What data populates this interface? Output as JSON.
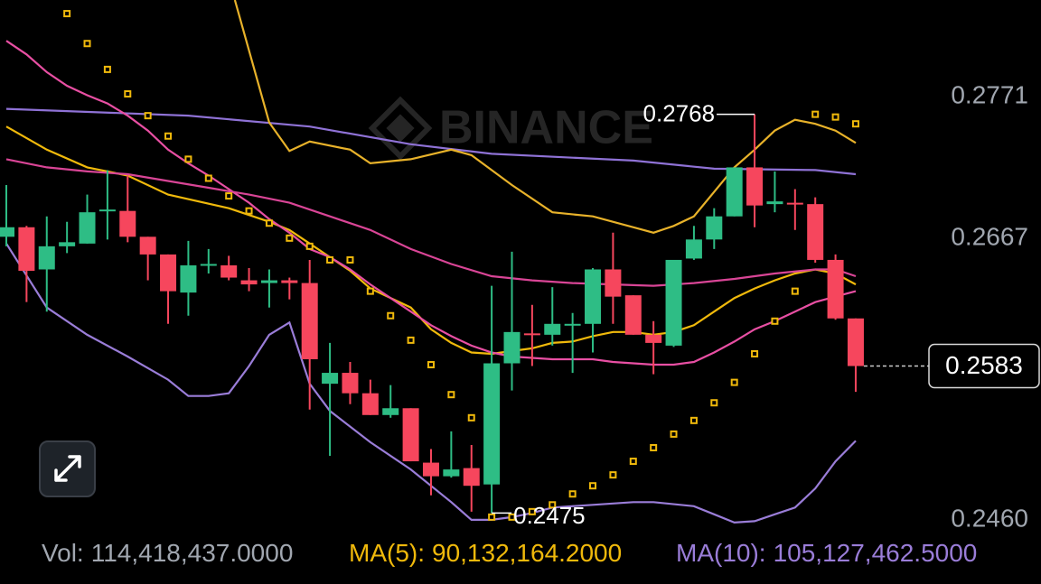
{
  "chart_data": {
    "type": "candlestick",
    "watermark": "BINANCE",
    "up_color": "#2ebd85",
    "down_color": "#f6465d",
    "ylim": [
      0.2454,
      0.2852
    ],
    "yticks": [
      {
        "value": 0.246,
        "label": "0.2460"
      },
      0.2667,
      0.2771
    ],
    "open": [
      0.2678,
      0.2685,
      0.2654,
      0.2671,
      0.2673,
      0.2697,
      0.2697,
      0.2678,
      0.2665,
      0.2637,
      0.2657,
      0.2657,
      0.2646,
      0.2644,
      0.2646,
      0.2644,
      0.257,
      0.2578,
      0.2563,
      0.2547,
      0.2552,
      0.2512,
      0.2502,
      0.2508,
      0.2496,
      0.2585,
      0.2607,
      0.2606,
      0.2613,
      0.2614,
      0.2654,
      0.2635,
      0.2606,
      0.2598,
      0.2662,
      0.2676,
      0.2693,
      0.2729,
      0.2702,
      0.2703,
      0.2702,
      0.2661,
      0.2618
    ],
    "high": [
      0.2716,
      0.2686,
      0.2693,
      0.2689,
      0.2709,
      0.2727,
      0.2723,
      0.2678,
      0.2665,
      0.2675,
      0.2669,
      0.2664,
      0.2655,
      0.2654,
      0.2648,
      0.2661,
      0.26,
      0.2586,
      0.2573,
      0.2569,
      0.2552,
      0.2522,
      0.2535,
      0.2525,
      0.2642,
      0.2667,
      0.2628,
      0.2641,
      0.2622,
      0.2655,
      0.2681,
      0.2635,
      0.2616,
      0.2661,
      0.2686,
      0.2699,
      0.2729,
      0.2768,
      0.2726,
      0.2713,
      0.2707,
      0.2665,
      0.2618
    ],
    "low": [
      0.2671,
      0.263,
      0.2623,
      0.2666,
      0.2673,
      0.2676,
      0.2674,
      0.2646,
      0.2614,
      0.262,
      0.2651,
      0.2646,
      0.2638,
      0.2626,
      0.2632,
      0.2551,
      0.2517,
      0.2555,
      0.2547,
      0.2545,
      0.2513,
      0.2488,
      0.2501,
      0.2476,
      0.2475,
      0.2565,
      0.2583,
      0.2598,
      0.2578,
      0.2593,
      0.2614,
      0.2606,
      0.2577,
      0.2597,
      0.2661,
      0.2669,
      0.2693,
      0.2685,
      0.2696,
      0.2683,
      0.2659,
      0.2617,
      0.2564
    ],
    "close": [
      0.2685,
      0.2653,
      0.2671,
      0.2674,
      0.2696,
      0.2698,
      0.2678,
      0.2665,
      0.2638,
      0.2657,
      0.2658,
      0.2648,
      0.2643,
      0.2646,
      0.2644,
      0.2588,
      0.2578,
      0.2563,
      0.2547,
      0.2552,
      0.2513,
      0.2502,
      0.2507,
      0.2495,
      0.2585,
      0.2608,
      0.2606,
      0.2614,
      0.2614,
      0.2654,
      0.2634,
      0.2606,
      0.26,
      0.2661,
      0.2676,
      0.2693,
      0.2729,
      0.2701,
      0.2704,
      0.2702,
      0.2661,
      0.2618,
      0.2583
    ],
    "overlays": [
      {
        "style": "line",
        "color": "#8f72d6",
        "x": [
          0,
          9,
          15,
          20,
          24,
          31,
          35,
          40,
          42
        ],
        "values": [
          0.2772,
          0.2767,
          0.2759,
          0.2746,
          0.2739,
          0.2734,
          0.2728,
          0.2727,
          0.2724
        ]
      },
      {
        "style": "line",
        "color": "#e8b22a",
        "x": [
          11.3,
          13,
          14,
          15,
          17,
          18,
          20,
          22,
          23,
          25,
          27,
          29,
          32,
          33,
          34,
          35,
          36,
          37,
          38,
          39,
          40,
          41,
          42
        ],
        "values": [
          0.2852,
          0.2762,
          0.2741,
          0.2748,
          0.2742,
          0.2732,
          0.2735,
          0.2742,
          0.2738,
          0.2716,
          0.2696,
          0.2693,
          0.2681,
          0.2686,
          0.2693,
          0.2711,
          0.2729,
          0.2742,
          0.2756,
          0.2764,
          0.2761,
          0.2756,
          0.2747
        ]
      },
      {
        "style": "line",
        "color": "#f0b90b",
        "x": [
          0,
          2,
          4,
          6,
          8,
          11,
          13,
          14,
          15,
          16,
          17,
          18,
          20,
          21,
          22,
          23,
          24,
          25,
          26,
          27,
          28,
          29,
          30,
          31,
          32,
          33,
          34,
          35,
          36,
          37,
          38,
          39,
          40,
          41,
          42
        ],
        "values": [
          0.2759,
          0.2742,
          0.2729,
          0.2723,
          0.2709,
          0.2699,
          0.2689,
          0.2683,
          0.2673,
          0.2663,
          0.2653,
          0.264,
          0.2626,
          0.261,
          0.26,
          0.2593,
          0.2592,
          0.2594,
          0.2596,
          0.26,
          0.2601,
          0.2605,
          0.2608,
          0.2608,
          0.2606,
          0.2608,
          0.2613,
          0.2623,
          0.2633,
          0.264,
          0.2646,
          0.2651,
          0.2654,
          0.2651,
          0.2643
        ]
      },
      {
        "style": "line",
        "color": "#e84fa3",
        "x": [
          0,
          1,
          2,
          3,
          4,
          5,
          6,
          7,
          8,
          9,
          10,
          11,
          12,
          13,
          14,
          15,
          16,
          17,
          18,
          19,
          20,
          21,
          22,
          23,
          24,
          25,
          27,
          29,
          30,
          31,
          32,
          33,
          34,
          35,
          36,
          37,
          38,
          39,
          40,
          41,
          42
        ],
        "values": [
          0.2822,
          0.2812,
          0.2799,
          0.2789,
          0.2782,
          0.2776,
          0.2767,
          0.2756,
          0.2742,
          0.2732,
          0.2723,
          0.2713,
          0.2703,
          0.2691,
          0.2681,
          0.2669,
          0.2663,
          0.2654,
          0.2643,
          0.2633,
          0.2623,
          0.2613,
          0.2605,
          0.2598,
          0.2593,
          0.259,
          0.2588,
          0.2588,
          0.2586,
          0.2585,
          0.2584,
          0.2584,
          0.2586,
          0.2593,
          0.2601,
          0.261,
          0.2616,
          0.2623,
          0.263,
          0.2634,
          0.2638
        ]
      },
      {
        "style": "line",
        "color": "#d94596",
        "x": [
          0,
          2,
          4,
          6,
          8,
          10,
          12,
          14,
          16,
          18,
          20,
          22,
          24,
          26,
          28,
          30,
          32,
          34,
          36,
          38,
          40,
          41,
          42
        ],
        "values": [
          0.2735,
          0.2729,
          0.2726,
          0.2724,
          0.2719,
          0.2714,
          0.2709,
          0.2703,
          0.2693,
          0.2683,
          0.2669,
          0.2658,
          0.2649,
          0.2646,
          0.2644,
          0.2643,
          0.2642,
          0.2644,
          0.2647,
          0.2651,
          0.2654,
          0.2654,
          0.2649
        ]
      },
      {
        "style": "line",
        "color": "#9a7dd8",
        "x": [
          0,
          2,
          4,
          6,
          8,
          9,
          10,
          11,
          12,
          13,
          14,
          15,
          16,
          18,
          20,
          22,
          23,
          24,
          25,
          26,
          27,
          29,
          31,
          32,
          34,
          35,
          36,
          37,
          38,
          39,
          40,
          41,
          42
        ],
        "values": [
          0.2673,
          0.2626,
          0.2606,
          0.259,
          0.2573,
          0.2561,
          0.2561,
          0.2563,
          0.2583,
          0.2606,
          0.2615,
          0.257,
          0.255,
          0.2527,
          0.2507,
          0.2483,
          0.247,
          0.247,
          0.2472,
          0.2475,
          0.2479,
          0.2481,
          0.2483,
          0.2483,
          0.248,
          0.2474,
          0.2468,
          0.2469,
          0.2474,
          0.2479,
          0.2493,
          0.2513,
          0.2528
        ]
      },
      {
        "style": "dots",
        "color": "#f0b90b",
        "x": [
          3,
          4,
          5,
          6,
          7,
          8,
          9,
          10,
          11,
          12,
          13,
          14,
          15,
          16,
          17,
          18,
          19,
          20,
          21,
          22,
          23,
          24,
          25,
          26,
          27,
          28,
          29,
          30,
          31,
          32,
          33,
          34,
          35,
          36,
          37,
          38,
          39,
          40,
          41,
          42
        ],
        "values": [
          0.2842,
          0.282,
          0.2801,
          0.2783,
          0.2767,
          0.2752,
          0.2735,
          0.2721,
          0.2708,
          0.2697,
          0.2688,
          0.2677,
          0.2671,
          0.2661,
          0.2661,
          0.2638,
          0.262,
          0.2602,
          0.2584,
          0.2562,
          0.2545,
          0.2472,
          0.2472,
          0.2476,
          0.2481,
          0.2489,
          0.2495,
          0.2503,
          0.2513,
          0.2523,
          0.2533,
          0.2543,
          0.2556,
          0.2571,
          0.2592,
          0.2616,
          0.2638,
          0.2768,
          0.2766,
          0.2761
        ]
      }
    ],
    "footer": [
      {
        "label": "Vol:",
        "text": "114,418,437.0000",
        "color": "#a1a7b0"
      },
      {
        "label": "MA(5):",
        "text": "90,132,164.2000",
        "color": "#f0b90b"
      },
      {
        "label": "MA(10):",
        "text": "105,127,462.5000",
        "color": "#9a7dd8"
      }
    ]
  }
}
